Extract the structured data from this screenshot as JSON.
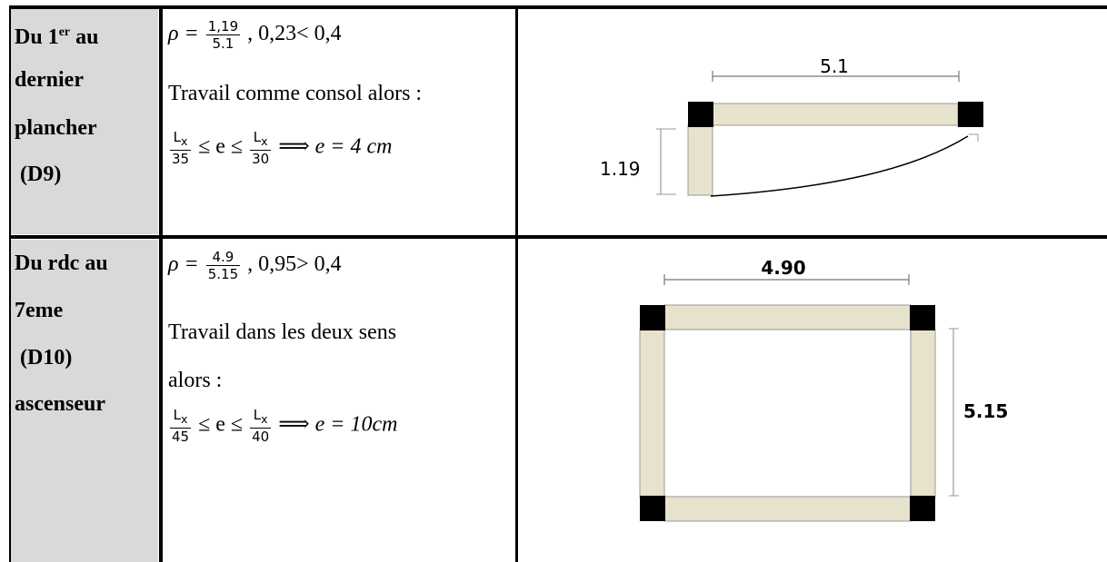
{
  "rows": [
    {
      "label_lines": [
        "Du 1",
        "dernier",
        "plancher",
        " (D9)"
      ],
      "label_sup": "er",
      "label_first_suffix": " au",
      "rho_num": "1,19",
      "rho_den": "5.1",
      "rho_text": " , 0,23< 0,4",
      "line2": "Travail comme consol alors :",
      "line3": "",
      "ineq_left_den": "35",
      "ineq_right_den": "30",
      "result": "e = 4 cm",
      "diagram": {
        "dim_top": "5.1",
        "dim_side": "1.19"
      }
    },
    {
      "label_lines": [
        "Du rdc au",
        "7eme",
        " (D10)",
        "ascenseur"
      ],
      "rho_num": "4.9",
      "rho_den": "5.15",
      "rho_text": " , 0,95> 0,4",
      "line2": "Travail dans les deux sens",
      "line3": "alors :",
      "ineq_left_den": "45",
      "ineq_right_den": "40",
      "result": "e = 10cm",
      "diagram": {
        "dim_top": "4.90",
        "dim_side": "5.15"
      }
    }
  ],
  "symbols": {
    "rho": "ρ =",
    "lx": "L",
    "lx_sub": "x",
    "le": "≤ e ≤",
    "implies": "⟹"
  },
  "colors": {
    "label_bg": "#d9d9d9",
    "beam_fill": "#e6e2cc",
    "beam_stroke": "#999999"
  }
}
